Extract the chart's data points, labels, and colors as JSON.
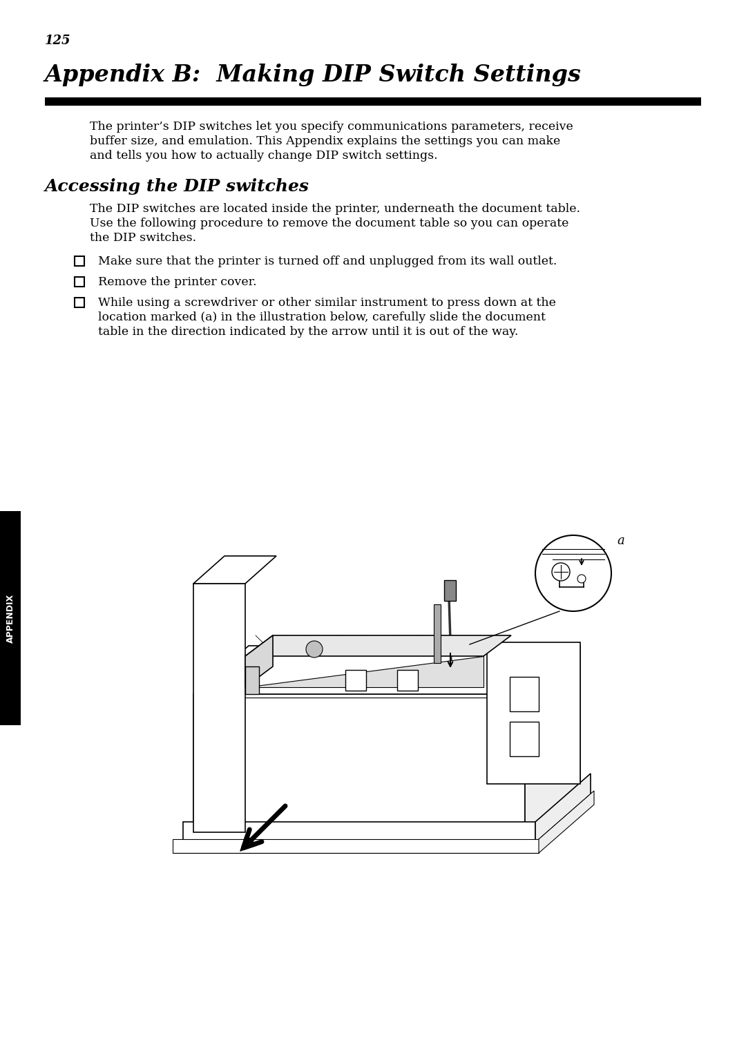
{
  "page_number": "125",
  "title": "Appendix B:  Making DIP Switch Settings",
  "intro_lines": [
    "The printer’s DIP switches let you specify communications parameters, receive",
    "buffer size, and emulation. This Appendix explains the settings you can make",
    "and tells you how to actually change DIP switch settings."
  ],
  "section_title": "Accessing the DIP switches",
  "section_intro_lines": [
    "The DIP switches are located inside the printer, underneath the document table.",
    "Use the following procedure to remove the document table so you can operate",
    "the DIP switches."
  ],
  "bullet1": "Make sure that the printer is turned off and unplugged from its wall outlet.",
  "bullet2": "Remove the printer cover.",
  "bullet3_lines": [
    "While using a screwdriver or other similar instrument to press down at the",
    "location marked (a) in the illustration below, carefully slide the document",
    "table in the direction indicated by the arrow until it is out of the way."
  ],
  "appendix_label": "APPENDIX",
  "bg_color": "#ffffff",
  "text_color": "#000000",
  "sidebar_bg": "#000000",
  "sidebar_text": "#ffffff"
}
